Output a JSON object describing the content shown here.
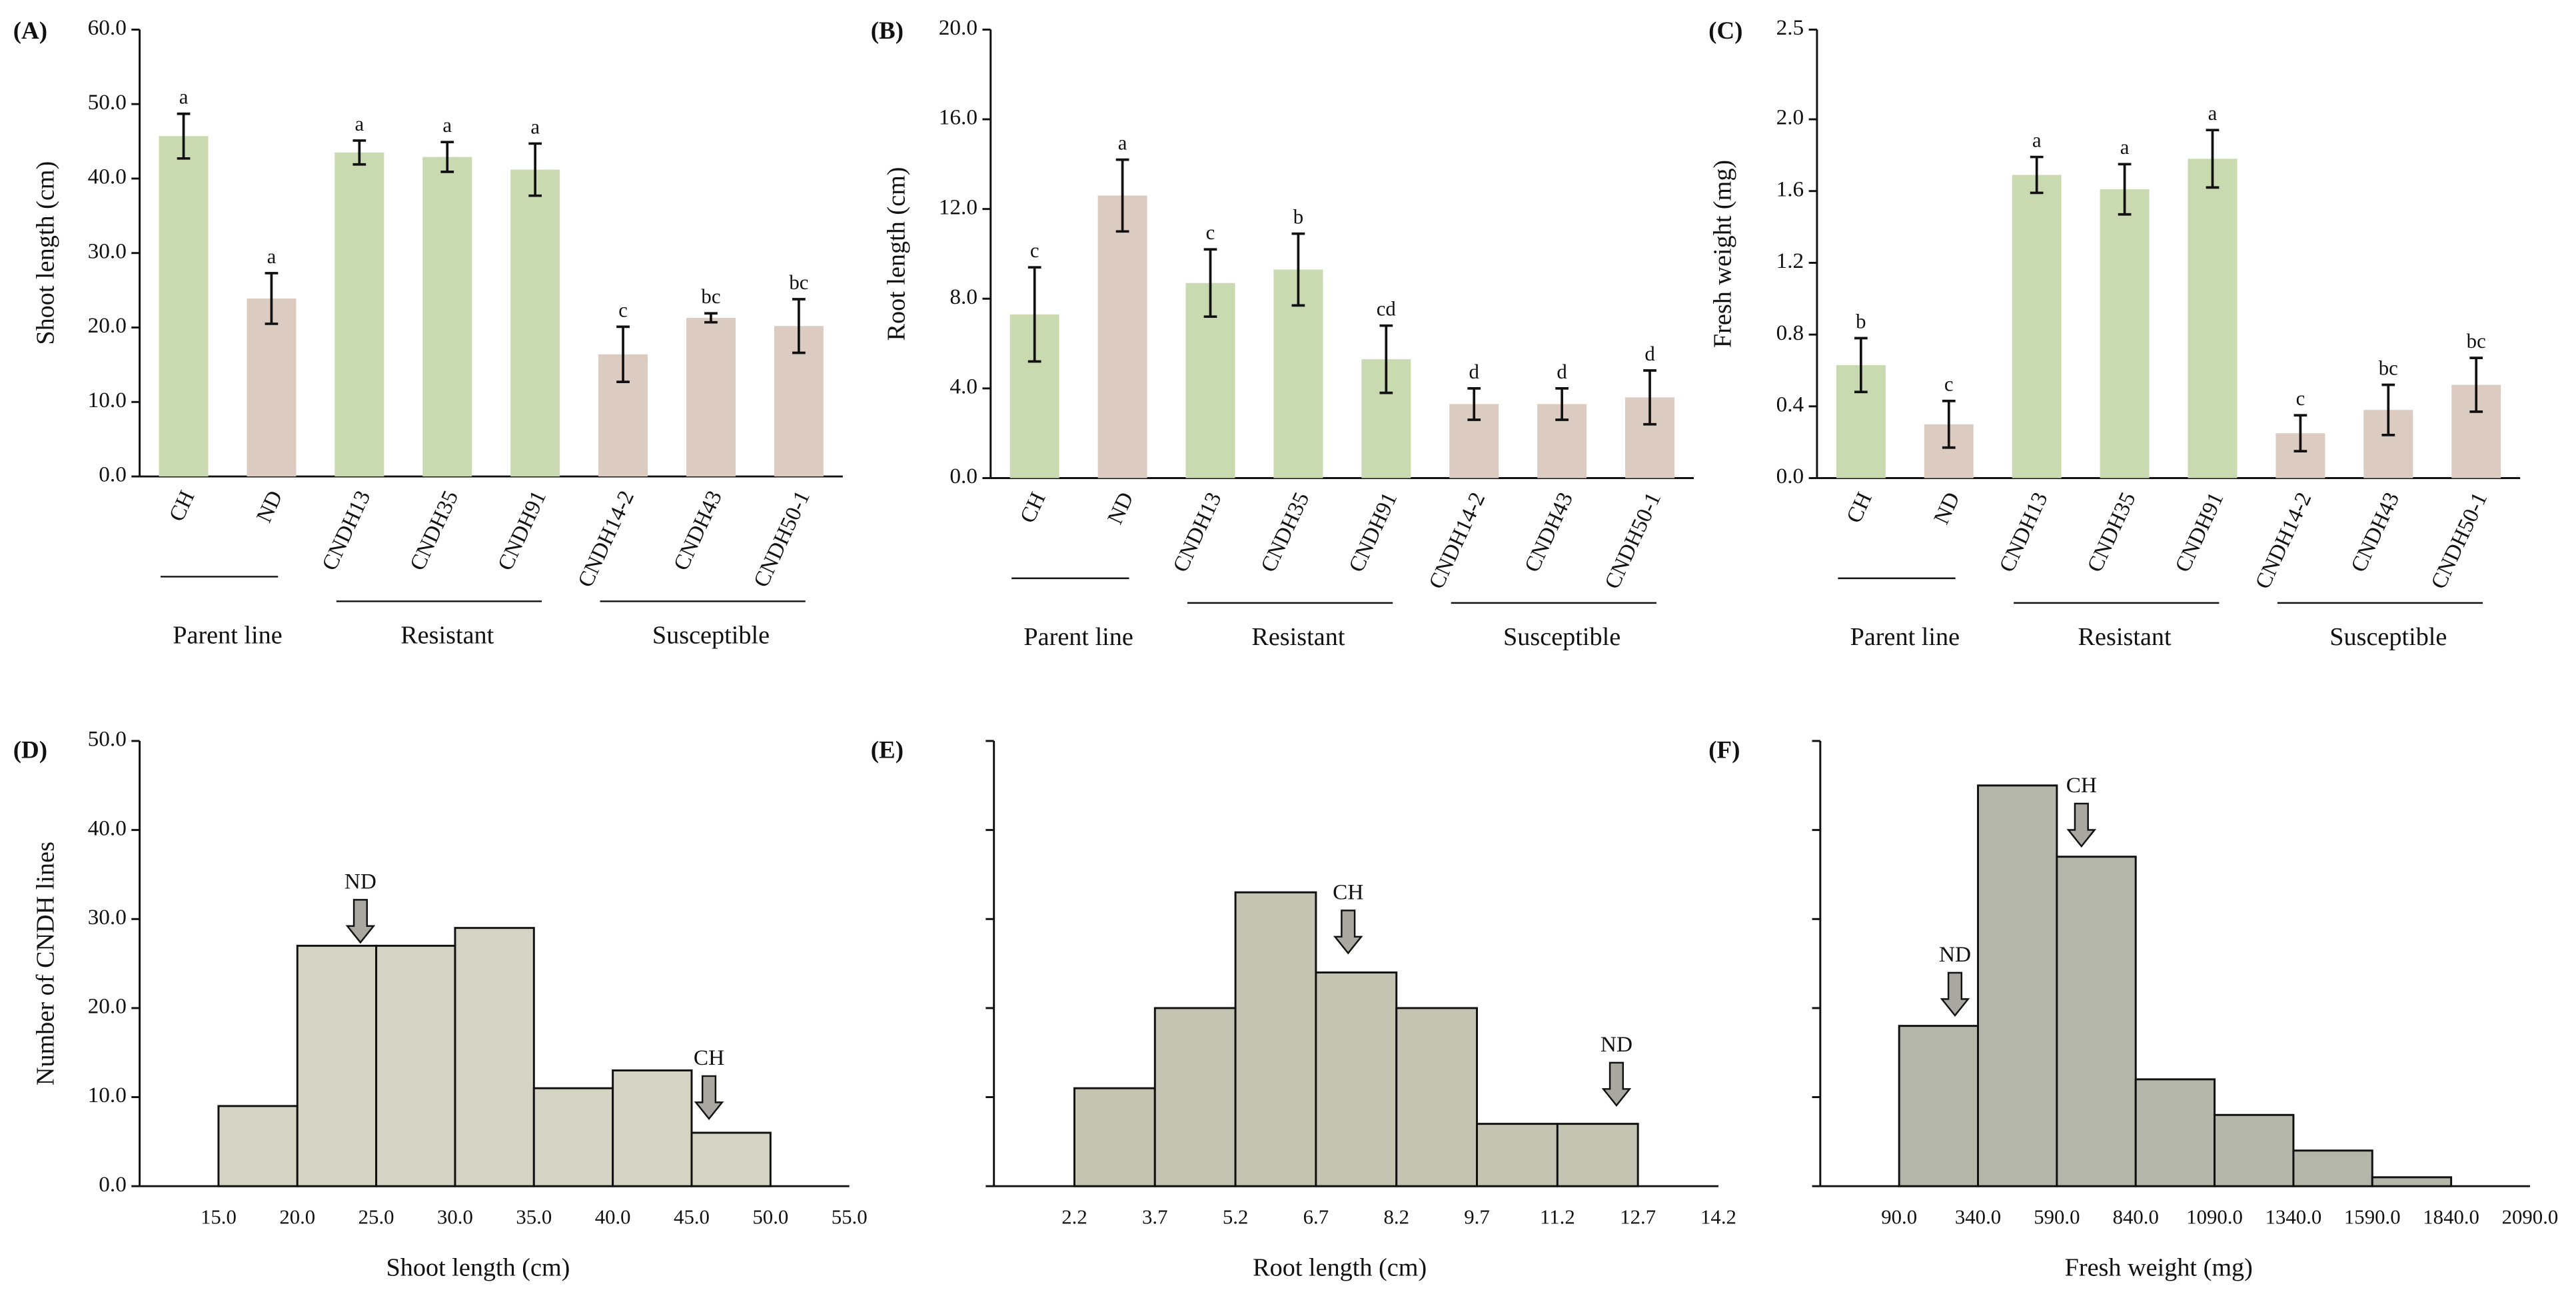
{
  "chart_data": [
    {
      "type": "bar",
      "panel_label": "(A)",
      "ylabel": "Shoot length (cm)",
      "categories": [
        "CH",
        "ND",
        "CNDH13",
        "CNDH35",
        "CNDH91",
        "CNDH14-2",
        "CNDH43",
        "CNDH50-1"
      ],
      "values": [
        45.7,
        23.9,
        43.5,
        42.9,
        41.2,
        16.4,
        21.3,
        20.2
      ],
      "errors": [
        3.0,
        3.4,
        1.6,
        2.0,
        3.5,
        3.7,
        0.6,
        3.6
      ],
      "letters": [
        "a",
        "a",
        "a",
        "a",
        "a",
        "c",
        "bc",
        "bc"
      ],
      "colors": [
        "#c9d9b0",
        "#dccbc0",
        "#c9d9b0",
        "#c9d9b0",
        "#c9d9b0",
        "#dccbc0",
        "#dccbc0",
        "#dccbc0"
      ],
      "ylim": [
        0,
        60
      ],
      "yticks": [
        {
          "value": 0,
          "label": "0.0"
        },
        {
          "value": 10,
          "label": "10.0"
        },
        {
          "value": 20,
          "label": "20.0"
        },
        {
          "value": 30,
          "label": "30.0"
        },
        {
          "value": 40,
          "label": "40.0"
        },
        {
          "value": 50,
          "label": "50.0"
        },
        {
          "value": 60,
          "label": "60.0"
        }
      ],
      "groups": [
        {
          "label": "Parent line",
          "count": 2
        },
        {
          "label": "Resistant",
          "count": 3
        },
        {
          "label": "Susceptible",
          "count": 3
        }
      ]
    },
    {
      "type": "bar",
      "panel_label": "(B)",
      "ylabel": "Root length (cm)",
      "categories": [
        "CH",
        "ND",
        "CNDH13",
        "CNDH35",
        "CNDH91",
        "CNDH14-2",
        "CNDH43",
        "CNDH50-1"
      ],
      "values": [
        7.3,
        12.6,
        8.7,
        9.3,
        5.3,
        3.3,
        3.3,
        3.6
      ],
      "errors": [
        2.1,
        1.6,
        1.5,
        1.6,
        1.5,
        0.7,
        0.7,
        1.2
      ],
      "letters": [
        "c",
        "a",
        "c",
        "b",
        "cd",
        "d",
        "d",
        "d"
      ],
      "colors": [
        "#c9d9b0",
        "#dccbc0",
        "#c9d9b0",
        "#c9d9b0",
        "#c9d9b0",
        "#dccbc0",
        "#dccbc0",
        "#dccbc0"
      ],
      "ylim": [
        0,
        20
      ],
      "yticks": [
        {
          "value": 0,
          "label": "0.0"
        },
        {
          "value": 4,
          "label": "4.0"
        },
        {
          "value": 8,
          "label": "8.0"
        },
        {
          "value": 12,
          "label": "12.0"
        },
        {
          "value": 16,
          "label": "16.0"
        },
        {
          "value": 20,
          "label": "20.0"
        }
      ],
      "groups": [
        {
          "label": "Parent line",
          "count": 2
        },
        {
          "label": "Resistant",
          "count": 3
        },
        {
          "label": "Susceptible",
          "count": 3
        }
      ]
    },
    {
      "type": "bar",
      "panel_label": "(C)",
      "ylabel": "Fresh weight (mg)",
      "categories": [
        "CH",
        "ND",
        "CNDH13",
        "CNDH35",
        "CNDH91",
        "CNDH14-2",
        "CNDH43",
        "CNDH50-1"
      ],
      "values": [
        0.63,
        0.3,
        1.69,
        1.61,
        1.78,
        0.25,
        0.38,
        0.52
      ],
      "errors": [
        0.15,
        0.13,
        0.1,
        0.14,
        0.16,
        0.1,
        0.14,
        0.15
      ],
      "letters": [
        "b",
        "c",
        "a",
        "a",
        "a",
        "c",
        "bc",
        "bc"
      ],
      "colors": [
        "#c9d9b0",
        "#dccbc0",
        "#c9d9b0",
        "#c9d9b0",
        "#c9d9b0",
        "#dccbc0",
        "#dccbc0",
        "#dccbc0"
      ],
      "ylim": [
        0,
        2.5
      ],
      "yticks": [
        {
          "value": 0,
          "label": "0.0"
        },
        0.4,
        0.8,
        1.2,
        1.6,
        {
          "value": 2,
          "label": "2.0"
        },
        2.5
      ],
      "groups": [
        {
          "label": "Parent line",
          "count": 2
        },
        {
          "label": "Resistant",
          "count": 3
        },
        {
          "label": "Susceptible",
          "count": 3
        }
      ]
    },
    {
      "type": "histogram",
      "panel_label": "(D)",
      "xlabel": "Shoot length (cm)",
      "ylabel": "Number of CNDH lines",
      "bins": [
        15,
        20,
        25,
        30,
        35,
        40,
        45,
        50
      ],
      "counts": [
        9,
        27,
        27,
        29,
        11,
        13,
        6
      ],
      "color": "#d4d4c5",
      "xlim": [
        10,
        55
      ],
      "xticks": [
        {
          "value": 15,
          "label": "15.0"
        },
        {
          "value": 20,
          "label": "20.0"
        },
        {
          "value": 25,
          "label": "25.0"
        },
        {
          "value": 30,
          "label": "30.0"
        },
        {
          "value": 35,
          "label": "35.0"
        },
        {
          "value": 40,
          "label": "40.0"
        },
        {
          "value": 45,
          "label": "45.0"
        },
        {
          "value": 50,
          "label": "50.0"
        },
        {
          "value": 55,
          "label": "55.0"
        }
      ],
      "ylim": [
        0,
        50
      ],
      "yticks": [
        {
          "value": 0,
          "label": "0.0"
        },
        {
          "value": 10,
          "label": "10.0"
        },
        {
          "value": 20,
          "label": "20.0"
        },
        {
          "value": 30,
          "label": "30.0"
        },
        {
          "value": 40,
          "label": "40.0"
        },
        {
          "value": 50,
          "label": "50.0"
        }
      ],
      "show_ytick_labels": true,
      "annotations": [
        {
          "text": "ND",
          "x": 24,
          "y": 27
        },
        {
          "text": "CH",
          "x": 46.1,
          "y": 7.2
        }
      ]
    },
    {
      "type": "histogram",
      "panel_label": "(E)",
      "xlabel": "Root length (cm)",
      "bins": [
        2.2,
        3.7,
        5.2,
        6.7,
        8.2,
        9.7,
        11.2,
        12.7
      ],
      "counts": [
        11,
        20,
        33,
        24,
        20,
        7,
        7
      ],
      "color": "#c3c4b1",
      "xlim": [
        0.7,
        14.2
      ],
      "xticks": [
        2.2,
        3.7,
        5.2,
        6.7,
        8.2,
        9.7,
        11.2,
        12.7,
        14.2
      ],
      "ylim": [
        0,
        50
      ],
      "yticks": [
        0,
        10,
        20,
        30,
        40,
        50
      ],
      "show_ytick_labels": false,
      "annotations": [
        {
          "text": "CH",
          "x": 7.3,
          "y": 25.8
        },
        {
          "text": "ND",
          "x": 12.3,
          "y": 8.7
        }
      ]
    },
    {
      "type": "histogram",
      "panel_label": "(F)",
      "xlabel": "Fresh weight (mg)",
      "bins": [
        90,
        340,
        590,
        840,
        1090,
        1340,
        1590,
        1840
      ],
      "counts": [
        18,
        45,
        37,
        12,
        8,
        4,
        1
      ],
      "color": "#b4b6a9",
      "xlim": [
        -160,
        2090
      ],
      "xticks": [
        {
          "value": 90,
          "label": "90.0"
        },
        {
          "value": 340,
          "label": "340.0"
        },
        {
          "value": 590,
          "label": "590.0"
        },
        {
          "value": 840,
          "label": "840.0"
        },
        {
          "value": 1090,
          "label": "1090.0"
        },
        {
          "value": 1340,
          "label": "1340.0"
        },
        {
          "value": 1590,
          "label": "1590.0"
        },
        {
          "value": 1840,
          "label": "1840.0"
        },
        {
          "value": 2090,
          "label": "2090.0"
        }
      ],
      "ylim": [
        0,
        50
      ],
      "yticks": [
        0,
        10,
        20,
        30,
        40,
        50
      ],
      "show_ytick_labels": false,
      "annotations": [
        {
          "text": "ND",
          "x": 267,
          "y": 18.8
        },
        {
          "text": "CH",
          "x": 668,
          "y": 37.8
        }
      ]
    }
  ]
}
